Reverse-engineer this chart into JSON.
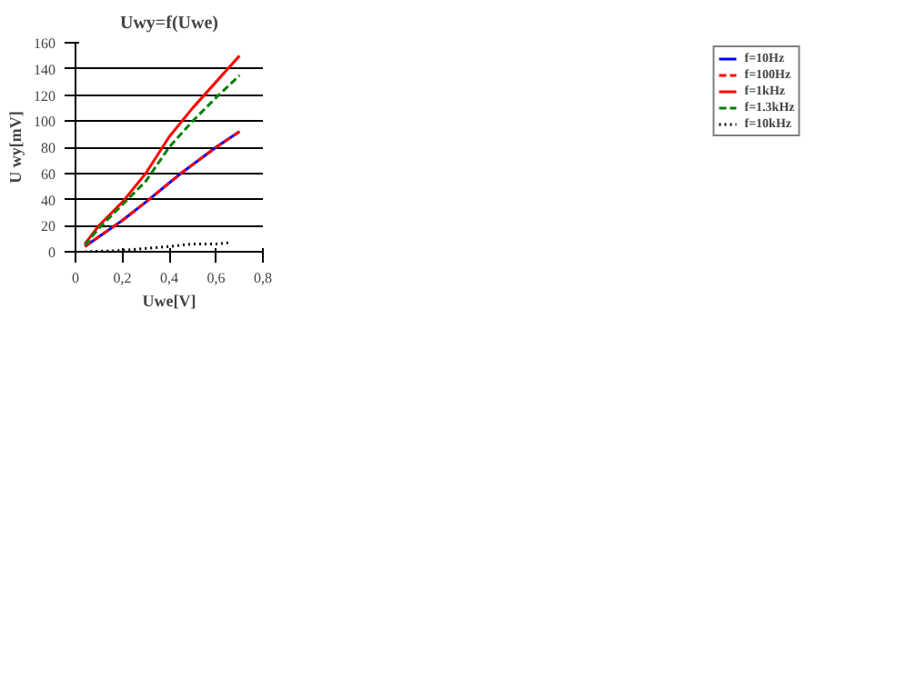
{
  "chart_data": {
    "type": "line",
    "title": "Uwy=f(Uwe)",
    "xlabel": "Uwe[V]",
    "ylabel": "U wy[mV]",
    "xlim": [
      0,
      0.8
    ],
    "xticks": [
      0,
      {
        "value": 0.2,
        "label": "0,2"
      },
      {
        "value": 0.4,
        "label": "0,4"
      },
      {
        "value": 0.6,
        "label": "0,6"
      },
      {
        "value": 0.8,
        "label": "0,8"
      }
    ],
    "ylim": [
      0,
      160
    ],
    "yticks": [
      0,
      20,
      40,
      60,
      80,
      100,
      120,
      140,
      160
    ],
    "grid": "y",
    "legend": "right",
    "series": [
      {
        "name": "f=10Hz",
        "color": "#0000ff",
        "line_style": "solid",
        "x": [
          0.04,
          0.2,
          0.3,
          0.45,
          0.6,
          0.7
        ],
        "values": [
          4,
          24,
          38,
          60,
          80,
          92
        ]
      },
      {
        "name": "f=100Hz",
        "color": "#ff0000",
        "line_style": "dashed",
        "x": [
          0.04,
          0.2,
          0.3,
          0.45,
          0.6,
          0.7
        ],
        "values": [
          4,
          24,
          38,
          60,
          80,
          92
        ]
      },
      {
        "name": "f=1kHz",
        "color": "#ff0000",
        "line_style": "solid",
        "x": [
          0.04,
          0.1,
          0.2,
          0.3,
          0.4,
          0.5,
          0.6,
          0.7
        ],
        "values": [
          6,
          20,
          38,
          60,
          88,
          110,
          130,
          150
        ]
      },
      {
        "name": "f=1.3kHz",
        "color": "#008000",
        "line_style": "dashed",
        "x": [
          0.04,
          0.1,
          0.2,
          0.3,
          0.4,
          0.5,
          0.6,
          0.7
        ],
        "values": [
          5,
          18,
          36,
          54,
          80,
          100,
          118,
          135
        ]
      },
      {
        "name": "f=10kHz",
        "color": "#000000",
        "line_style": "dotted",
        "x": [
          0.04,
          0.2,
          0.4,
          0.5,
          0.6,
          0.66
        ],
        "values": [
          0,
          1,
          4,
          6,
          6,
          7
        ]
      }
    ]
  }
}
